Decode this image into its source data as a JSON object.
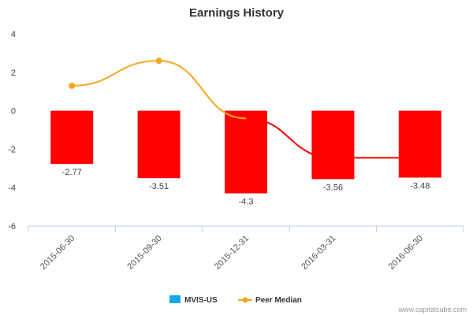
{
  "chart_data": {
    "type": "bar",
    "title": "Earnings History",
    "categories": [
      "2015-06-30",
      "2015-09-30",
      "2015-12-31",
      "2016-03-31",
      "2016-06-30"
    ],
    "series": [
      {
        "name": "MVIS-US",
        "type": "bar",
        "values": [
          -2.77,
          -3.51,
          -4.3,
          -3.56,
          -3.48
        ],
        "color": "#ff0000",
        "legend_color": "#11a9e8"
      },
      {
        "name": "Peer Median",
        "type": "line",
        "values": [
          1.3,
          2.6,
          null,
          null,
          null
        ],
        "color": "#f5a623"
      }
    ],
    "connector_line": {
      "values": [
        null,
        null,
        -0.4,
        -2.45,
        -2.45
      ],
      "color": "#ff0000"
    },
    "ylim": [
      -6,
      4
    ],
    "yticks": [
      4,
      2,
      0,
      -2,
      -4,
      -6
    ],
    "xlabel": "",
    "ylabel": "",
    "grid": false,
    "legend_position": "bottom-center"
  },
  "credit": "www.capitalcube.com"
}
